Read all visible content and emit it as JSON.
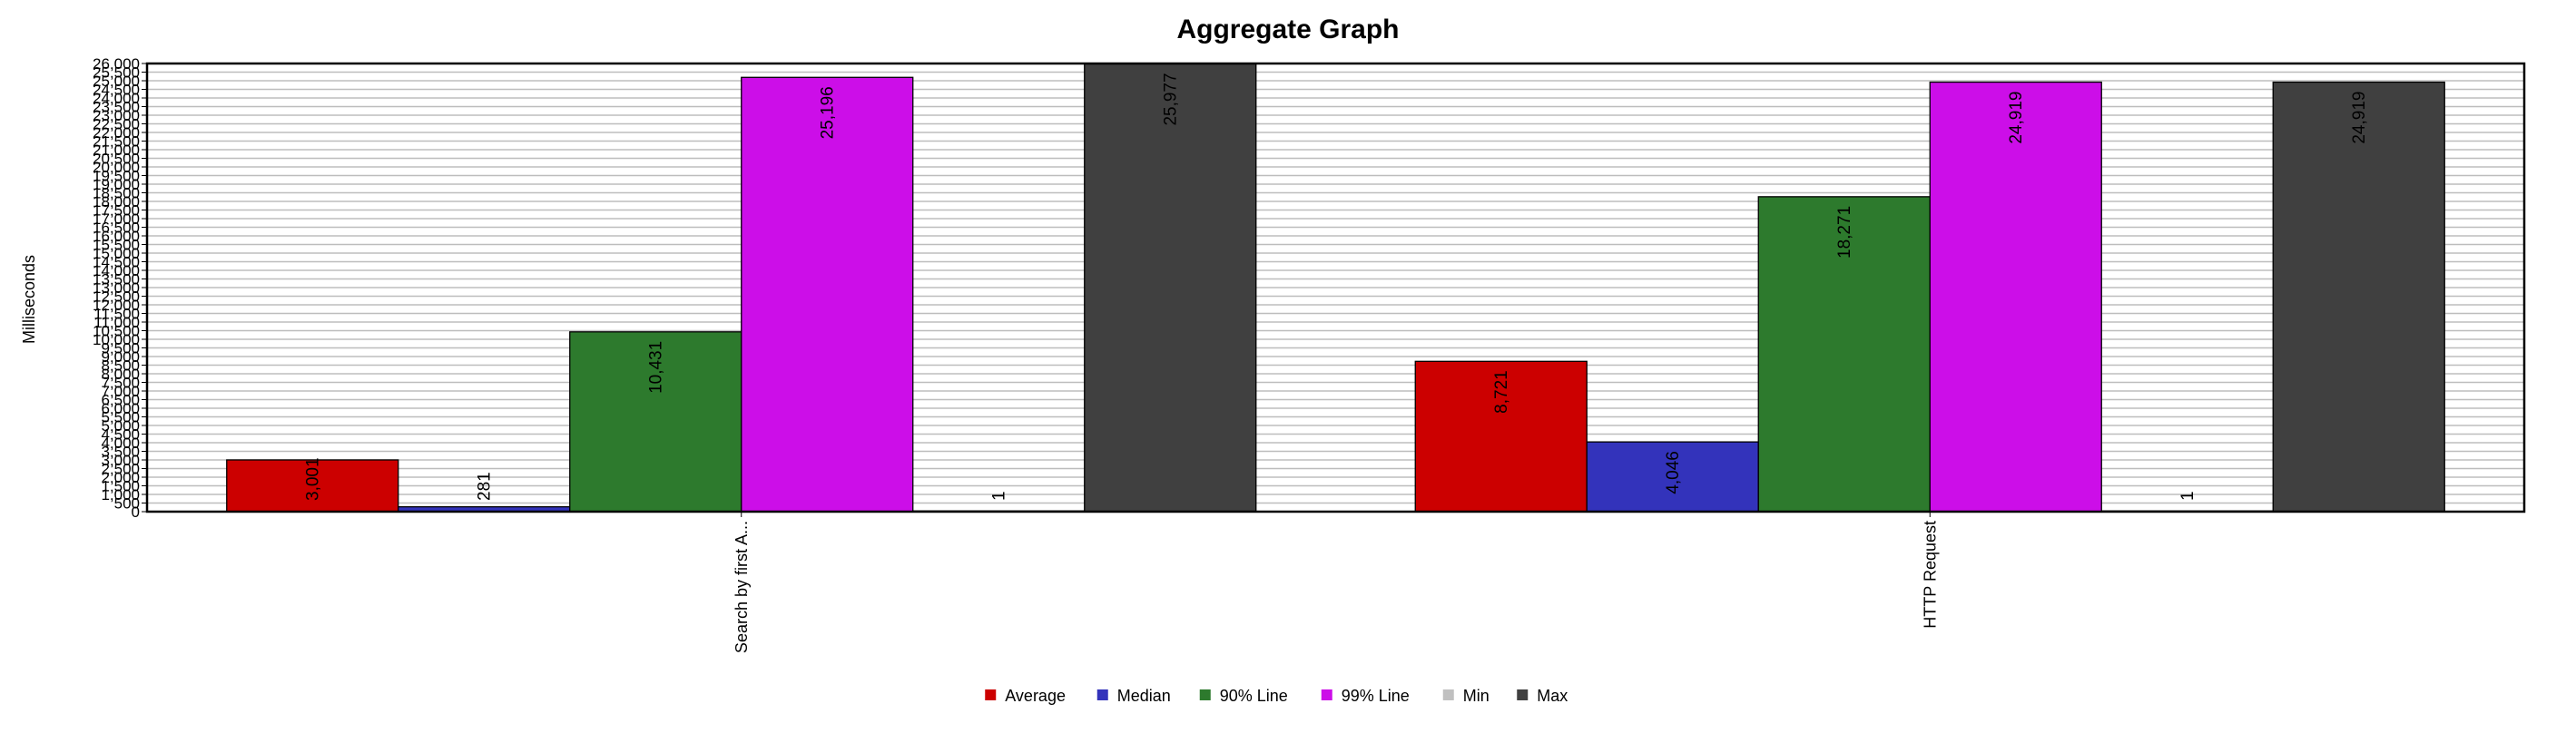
{
  "chart_data": {
    "type": "bar",
    "title": "Aggregate Graph",
    "ylabel": "Milliseconds",
    "ylim": [
      0,
      26000
    ],
    "y_tick_step": 500,
    "grid": true,
    "legend_position": "bottom",
    "categories": [
      "Search by first A...",
      "HTTP Request"
    ],
    "series": [
      {
        "name": "Average",
        "color": "#cc0000",
        "values": [
          3001,
          8721
        ],
        "labels": [
          "3,001",
          "8,721"
        ]
      },
      {
        "name": "Median",
        "color": "#3333bb",
        "values": [
          281,
          4046
        ],
        "labels": [
          "281",
          "4,046"
        ]
      },
      {
        "name": "90% Line",
        "color": "#2d7a2d",
        "values": [
          10431,
          18271
        ],
        "labels": [
          "10,431",
          "18,271"
        ]
      },
      {
        "name": "99% Line",
        "color": "#cc0ee8",
        "values": [
          25196,
          24919
        ],
        "labels": [
          "25,196",
          "24,919"
        ]
      },
      {
        "name": "Min",
        "color": "#c0c0c0",
        "values": [
          1,
          1
        ],
        "labels": [
          "1",
          "1"
        ]
      },
      {
        "name": "Max",
        "color": "#404040",
        "values": [
          25977,
          24919
        ],
        "labels": [
          "25,977",
          "24,919"
        ]
      }
    ]
  }
}
